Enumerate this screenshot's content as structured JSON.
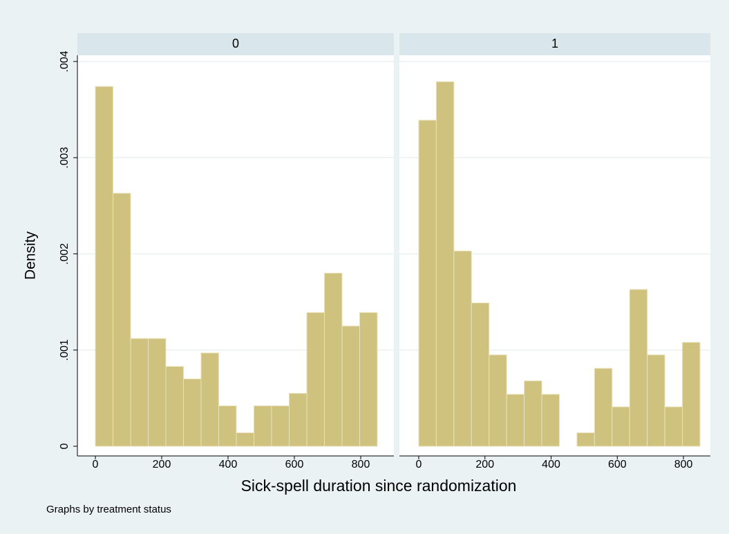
{
  "figure": {
    "xlabel": "Sick-spell duration since randomization",
    "ylabel": "Density",
    "note": "Graphs by treatment status"
  },
  "chart_data": [
    {
      "type": "histogram",
      "title": "0",
      "color": "#cfc27f",
      "bins": [
        0,
        53.125,
        106.25,
        159.375,
        212.5,
        265.625,
        318.75,
        371.875,
        425,
        478.125,
        531.25,
        584.375,
        637.5,
        690.625,
        743.75,
        796.875,
        850
      ],
      "values": [
        0.00374,
        0.00263,
        0.00112,
        0.00112,
        0.00083,
        0.0007,
        0.00097,
        0.00042,
        0.00014,
        0.00042,
        0.00042,
        0.00055,
        0.00139,
        0.0018,
        0.00125,
        0.00139
      ],
      "xlim": [
        0,
        850
      ],
      "xticks": [
        0,
        200,
        400,
        600,
        800
      ],
      "ylim": [
        0,
        0.004
      ],
      "yticks": [
        0,
        {
          "value": 0.001,
          "label": ".001"
        },
        {
          "value": 0.002,
          "label": ".002"
        },
        {
          "value": 0.003,
          "label": ".003"
        },
        {
          "value": 0.004,
          "label": ".004"
        }
      ],
      "grid": true
    },
    {
      "type": "histogram",
      "title": "1",
      "color": "#cfc27f",
      "bins": [
        0,
        53.125,
        106.25,
        159.375,
        212.5,
        265.625,
        318.75,
        371.875,
        425,
        478.125,
        531.25,
        584.375,
        637.5,
        690.625,
        743.75,
        796.875,
        850
      ],
      "values": [
        0.00339,
        0.00379,
        0.00203,
        0.00149,
        0.00095,
        0.00054,
        0.00068,
        0.00054,
        0,
        0.00014,
        0.00081,
        0.00041,
        0.00163,
        0.00095,
        0.00041,
        0.00108
      ],
      "xlim": [
        0,
        850
      ],
      "xticks": [
        0,
        200,
        400,
        600,
        800
      ],
      "ylim": [
        0,
        0.004
      ],
      "yticks": [
        0,
        {
          "value": 0.001,
          "label": ".001"
        },
        {
          "value": 0.002,
          "label": ".002"
        },
        {
          "value": 0.003,
          "label": ".003"
        },
        {
          "value": 0.004,
          "label": ".004"
        }
      ],
      "grid": true
    }
  ]
}
